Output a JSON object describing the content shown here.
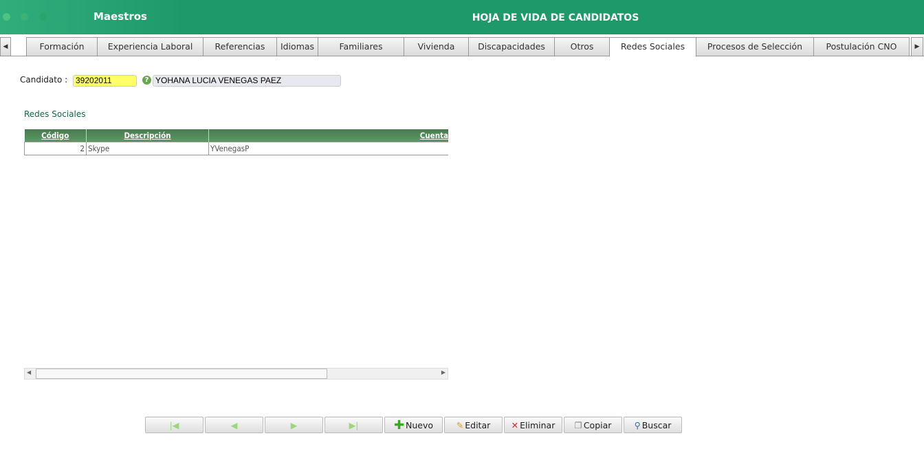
{
  "header": {
    "app": "Maestros",
    "title": "HOJA DE VIDA DE CANDIDATOS",
    "accent": "#1d9a6a"
  },
  "tabs": [
    "Formación",
    "Experiencia Laboral",
    "Referencias",
    "Idiomas",
    "Familiares",
    "Vivienda",
    "Discapacidades",
    "Otros",
    "Redes Sociales",
    "Procesos de Selección",
    "Postulación CNO"
  ],
  "active_tab": "Redes Sociales",
  "candidate": {
    "label": "Candidato :",
    "id": "39202011",
    "name": "YOHANA LUCIA VENEGAS PAEZ"
  },
  "section": "Redes Sociales",
  "table": {
    "headers": [
      "Código",
      "Descripción",
      "Cuenta"
    ],
    "rows": [
      [
        "2",
        "Skype",
        "YVenegasP"
      ]
    ]
  },
  "buttons": {
    "nuevo": "Nuevo",
    "editar": "Editar",
    "eliminar": "Eliminar",
    "copiar": "Copiar",
    "buscar": "Buscar"
  }
}
